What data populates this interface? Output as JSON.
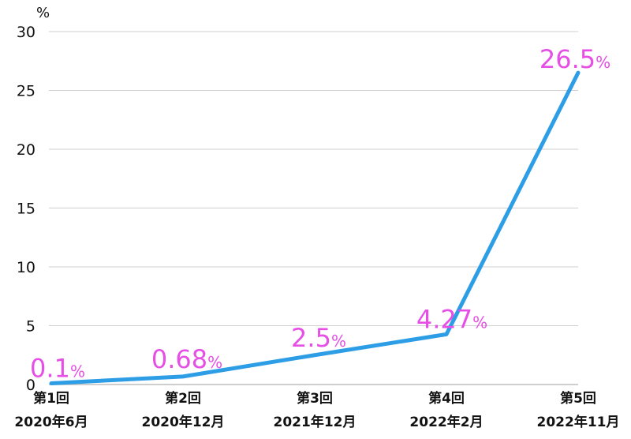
{
  "chart_data": {
    "type": "line",
    "ylabel": "%",
    "ylim": [
      0,
      30
    ],
    "yticks": [
      0,
      5,
      10,
      15,
      20,
      25,
      30
    ],
    "grid": true,
    "categories": [
      {
        "line1": "第1回",
        "line2": "2020年6月"
      },
      {
        "line1": "第2回",
        "line2": "2020年12月"
      },
      {
        "line1": "第3回",
        "line2": "2021年12月"
      },
      {
        "line1": "第4回",
        "line2": "2022年2月"
      },
      {
        "line1": "第5回",
        "line2": "2022年11月"
      }
    ],
    "series": [
      {
        "values": [
          0.1,
          0.68,
          2.5,
          4.27,
          26.5
        ],
        "labels": [
          "0.1",
          "0.68",
          "2.5",
          "4.27",
          "26.5"
        ],
        "label_unit": "%"
      }
    ],
    "colors": {
      "line": "#2d9ee6",
      "data_label": "#e64ee6"
    }
  }
}
